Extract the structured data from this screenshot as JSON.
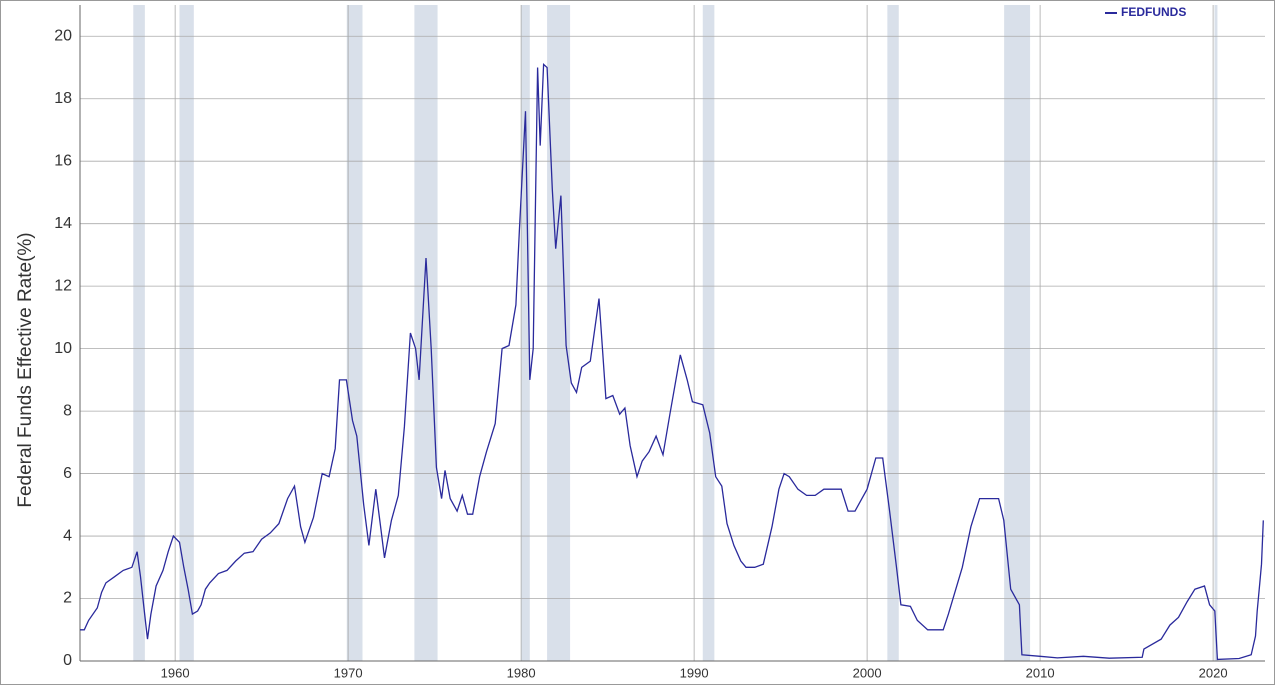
{
  "chart_data": {
    "type": "line",
    "y_label": "Federal Funds Effective Rate(%)",
    "xlim": [
      1954.5,
      2023.0
    ],
    "xticks": [
      1960,
      1970,
      1980,
      1990,
      2000,
      2010,
      2020
    ],
    "ylim": [
      0,
      21
    ],
    "yticks": [
      0,
      2,
      4,
      6,
      8,
      10,
      12,
      14,
      16,
      18,
      20
    ],
    "grid": true,
    "legend": "top-right",
    "recessions": [
      [
        1957.58,
        1958.25
      ],
      [
        1960.25,
        1961.08
      ],
      [
        1969.92,
        1970.83
      ],
      [
        1973.83,
        1975.17
      ],
      [
        1980.0,
        1980.5
      ],
      [
        1981.5,
        1982.83
      ],
      [
        1990.5,
        1991.17
      ],
      [
        2001.17,
        2001.83
      ],
      [
        2007.92,
        2009.42
      ],
      [
        2020.08,
        2020.25
      ]
    ],
    "recession_color": "#d9e0ea",
    "x": [
      1954.5,
      1954.75,
      1955.0,
      1955.5,
      1955.75,
      1956.0,
      1956.5,
      1957.0,
      1957.5,
      1957.8,
      1958.0,
      1958.3,
      1958.4,
      1958.6,
      1958.9,
      1959.3,
      1959.6,
      1959.9,
      1960.25,
      1960.5,
      1960.75,
      1961.0,
      1961.3,
      1961.5,
      1961.75,
      1962.0,
      1962.5,
      1963.0,
      1963.5,
      1964.0,
      1964.5,
      1965.0,
      1965.5,
      1966.0,
      1966.5,
      1966.9,
      1967.25,
      1967.5,
      1968.0,
      1968.5,
      1968.9,
      1969.25,
      1969.5,
      1969.9,
      1970.25,
      1970.5,
      1970.9,
      1971.2,
      1971.6,
      1971.9,
      1972.1,
      1972.5,
      1972.9,
      1973.25,
      1973.6,
      1973.9,
      1974.1,
      1974.5,
      1974.8,
      1975.1,
      1975.4,
      1975.6,
      1975.9,
      1976.3,
      1976.6,
      1976.9,
      1977.2,
      1977.6,
      1978.0,
      1978.5,
      1978.9,
      1979.3,
      1979.7,
      1979.9,
      1980.25,
      1980.5,
      1980.7,
      1980.95,
      1981.1,
      1981.3,
      1981.5,
      1981.8,
      1982.0,
      1982.3,
      1982.6,
      1982.9,
      1983.2,
      1983.5,
      1984.0,
      1984.5,
      1984.9,
      1985.3,
      1985.7,
      1986.0,
      1986.3,
      1986.7,
      1987.0,
      1987.4,
      1987.8,
      1988.2,
      1988.6,
      1989.2,
      1989.6,
      1989.9,
      1990.5,
      1990.9,
      1991.25,
      1991.6,
      1991.9,
      1992.3,
      1992.7,
      1993.0,
      1993.5,
      1994.0,
      1994.5,
      1994.9,
      1995.2,
      1995.5,
      1996.0,
      1996.5,
      1997.0,
      1997.5,
      1998.5,
      1998.9,
      1999.3,
      1999.7,
      2000.0,
      2000.5,
      2000.9,
      2001.3,
      2001.7,
      2001.95,
      2002.5,
      2002.9,
      2003.5,
      2004.4,
      2004.7,
      2005.5,
      2006.0,
      2006.5,
      2007.6,
      2007.9,
      2008.3,
      2008.8,
      2008.95,
      2010.0,
      2011.0,
      2012.5,
      2014.0,
      2015.9,
      2016.0,
      2017.0,
      2017.5,
      2018.0,
      2018.5,
      2018.95,
      2019.5,
      2019.8,
      2020.1,
      2020.25,
      2021.5,
      2022.2,
      2022.45,
      2022.55,
      2022.7,
      2022.8,
      2022.9
    ],
    "series": [
      {
        "name": "FEDFUNDS",
        "color": "#2a2a9c",
        "values": [
          1.0,
          1.0,
          1.3,
          1.7,
          2.2,
          2.5,
          2.7,
          2.9,
          3.0,
          3.5,
          2.7,
          1.2,
          0.7,
          1.5,
          2.4,
          2.9,
          3.5,
          4.0,
          3.8,
          3.0,
          2.3,
          1.5,
          1.6,
          1.8,
          2.3,
          2.5,
          2.8,
          2.9,
          3.2,
          3.45,
          3.5,
          3.9,
          4.1,
          4.4,
          5.2,
          5.6,
          4.3,
          3.8,
          4.6,
          6.0,
          5.9,
          6.8,
          9.0,
          9.0,
          7.7,
          7.2,
          5.0,
          3.7,
          5.5,
          4.2,
          3.3,
          4.5,
          5.3,
          7.5,
          10.5,
          10.0,
          9.0,
          12.9,
          10.0,
          6.2,
          5.2,
          6.1,
          5.2,
          4.8,
          5.3,
          4.7,
          4.7,
          5.9,
          6.7,
          7.6,
          10.0,
          10.1,
          11.4,
          13.8,
          17.6,
          9.0,
          10.0,
          19.0,
          16.5,
          19.1,
          19.0,
          15.1,
          13.2,
          14.9,
          10.1,
          8.9,
          8.6,
          9.4,
          9.6,
          11.6,
          8.4,
          8.5,
          7.9,
          8.1,
          6.9,
          5.9,
          6.4,
          6.7,
          7.2,
          6.6,
          7.9,
          9.8,
          9.0,
          8.3,
          8.2,
          7.3,
          5.9,
          5.6,
          4.4,
          3.7,
          3.2,
          3.0,
          3.0,
          3.1,
          4.3,
          5.5,
          6.0,
          5.9,
          5.5,
          5.3,
          5.3,
          5.5,
          5.5,
          4.8,
          4.8,
          5.2,
          5.5,
          6.5,
          6.5,
          4.8,
          3.0,
          1.8,
          1.75,
          1.3,
          1.0,
          1.0,
          1.5,
          3.0,
          4.3,
          5.2,
          5.2,
          4.5,
          2.3,
          1.8,
          0.2,
          0.15,
          0.1,
          0.15,
          0.09,
          0.12,
          0.38,
          0.7,
          1.15,
          1.4,
          1.9,
          2.3,
          2.4,
          1.8,
          1.6,
          0.05,
          0.08,
          0.2,
          0.8,
          1.6,
          2.5,
          3.1,
          4.5
        ]
      }
    ]
  }
}
